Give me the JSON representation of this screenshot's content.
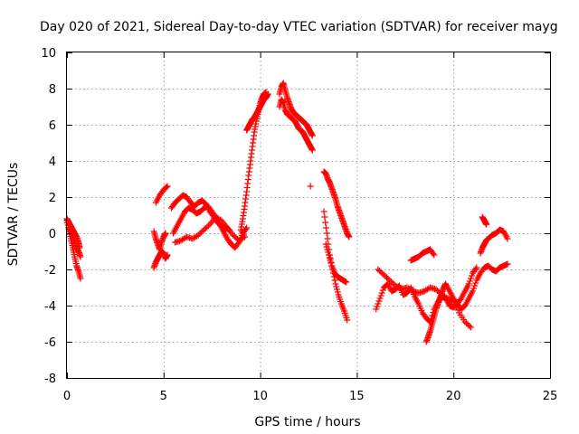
{
  "chart_data": {
    "type": "scatter",
    "title": "Day 020 of 2021, Sidereal Day-to-day VTEC variation (SDTVAR) for receiver mayg",
    "xlabel": "GPS time / hours",
    "ylabel": "SDTVAR / TECUs",
    "xlim": [
      0,
      25
    ],
    "ylim": [
      -8,
      10
    ],
    "xticks": [
      0,
      5,
      10,
      15,
      20,
      25
    ],
    "yticks": [
      -8,
      -6,
      -4,
      -2,
      0,
      2,
      4,
      6,
      8,
      10
    ],
    "xtick_labels": [
      "0",
      "5",
      "10",
      "15",
      "20",
      "25"
    ],
    "ytick_labels": [
      "-8",
      "-6",
      "-4",
      "-2",
      "0",
      "2",
      "4",
      "6",
      "8",
      "10"
    ],
    "grid": true,
    "marker": "+",
    "color": "#ff0000",
    "series": [
      {
        "name": "SDTVAR",
        "x": [
          0.0,
          0.1,
          0.2,
          0.3,
          0.4,
          0.5,
          0.6,
          0.65,
          0.0,
          0.1,
          0.2,
          0.3,
          0.4,
          0.5,
          0.6,
          0.7,
          0.1,
          0.2,
          0.3,
          0.4,
          0.5,
          0.6,
          0.7,
          4.5,
          4.6,
          4.7,
          4.8,
          4.9,
          5.0,
          5.1,
          4.5,
          4.6,
          4.7,
          4.8,
          4.9,
          5.0,
          5.1,
          5.2,
          4.6,
          4.8,
          5.0,
          5.2,
          5.4,
          5.6,
          5.8,
          6.0,
          6.2,
          6.4,
          6.6,
          6.8,
          7.0,
          7.2,
          7.4,
          7.6,
          7.8,
          8.0,
          8.2,
          8.4,
          5.5,
          5.7,
          5.9,
          6.1,
          6.3,
          6.5,
          6.7,
          6.9,
          7.1,
          7.3,
          7.5,
          7.7,
          7.9,
          8.1,
          8.3,
          8.5,
          8.7,
          8.9,
          9.1,
          9.3,
          5.6,
          5.9,
          6.2,
          6.5,
          6.8,
          7.1,
          7.4,
          7.7,
          8.0,
          8.3,
          8.6,
          8.9,
          9.2,
          9.0,
          9.1,
          9.2,
          9.3,
          9.4,
          9.5,
          9.6,
          9.7,
          9.8,
          9.9,
          10.0,
          10.1,
          10.2,
          10.3,
          9.3,
          9.4,
          9.5,
          9.6,
          9.7,
          9.8,
          9.9,
          10.0,
          10.1,
          10.2,
          10.3,
          10.4,
          11.0,
          11.1,
          11.2,
          11.3,
          11.4,
          11.5,
          11.6,
          11.7,
          11.8,
          11.9,
          12.0,
          12.1,
          12.2,
          12.3,
          12.4,
          12.5,
          12.6,
          12.7,
          11.0,
          11.1,
          11.2,
          11.3,
          11.4,
          11.5,
          11.6,
          11.7,
          11.8,
          11.9,
          12.0,
          12.1,
          12.2,
          12.3,
          12.4,
          12.5,
          12.6,
          12.7,
          12.6,
          13.3,
          13.4,
          13.5,
          13.6,
          13.7,
          13.8,
          13.9,
          14.0,
          14.1,
          14.2,
          14.3,
          14.4,
          14.5,
          14.6,
          13.3,
          13.45,
          13.6,
          13.75,
          13.9,
          14.05,
          14.2,
          14.35,
          14.5,
          13.4,
          13.55,
          13.7,
          13.85,
          14.0,
          14.15,
          14.3,
          14.45,
          16.0,
          16.2,
          16.4,
          16.6,
          16.8,
          17.0,
          17.2,
          17.4,
          17.6,
          17.8,
          18.0,
          18.2,
          18.4,
          18.6,
          18.8,
          19.0,
          19.2,
          19.4,
          19.6,
          19.8,
          20.0,
          20.2,
          20.4,
          20.6,
          20.8,
          21.0,
          21.2,
          16.1,
          16.4,
          16.7,
          17.0,
          17.3,
          17.6,
          17.9,
          18.2,
          18.5,
          18.8,
          19.1,
          19.4,
          19.7,
          20.0,
          20.3,
          20.6,
          20.9,
          17.8,
          18.0,
          18.2,
          18.4,
          18.6,
          18.8,
          19.0,
          18.6,
          18.7,
          18.8,
          18.9,
          19.0,
          19.1,
          19.2,
          19.3,
          19.4,
          19.5,
          19.6,
          19.8,
          20.0,
          20.2,
          20.4,
          20.6,
          20.8,
          21.0,
          21.2,
          21.4,
          21.6,
          21.8,
          22.0,
          22.2,
          22.4,
          22.6,
          22.8,
          21.4,
          21.5,
          21.6,
          21.7,
          21.8,
          22.0,
          22.2,
          22.4,
          22.6,
          22.8,
          21.5,
          21.6,
          21.7
        ],
        "y": [
          0.8,
          0.6,
          0.4,
          0.2,
          0.0,
          -0.2,
          -0.5,
          -0.8,
          0.7,
          0.2,
          -0.3,
          -0.8,
          -1.3,
          -1.8,
          -2.1,
          -2.5,
          0.3,
          0.1,
          -0.2,
          -0.5,
          -0.8,
          -1.0,
          -1.3,
          0.1,
          -0.3,
          -0.6,
          -0.9,
          -0.5,
          -0.2,
          0.0,
          -1.9,
          -1.6,
          -1.4,
          -1.2,
          -1.0,
          -1.1,
          -1.4,
          -1.2,
          1.7,
          2.1,
          2.4,
          2.6,
          1.4,
          1.7,
          1.9,
          2.1,
          2.0,
          1.7,
          1.5,
          1.7,
          1.8,
          1.6,
          1.2,
          0.9,
          0.6,
          0.4,
          0.3,
          0.2,
          0.0,
          0.4,
          0.8,
          1.2,
          1.4,
          1.3,
          1.1,
          1.2,
          1.4,
          1.5,
          1.2,
          0.9,
          0.5,
          0.1,
          -0.3,
          -0.6,
          -0.8,
          -0.5,
          0.0,
          0.3,
          -0.5,
          -0.4,
          -0.2,
          -0.3,
          -0.1,
          0.2,
          0.5,
          0.9,
          0.7,
          0.3,
          -0.1,
          -0.4,
          -0.2,
          0.2,
          0.8,
          1.5,
          2.3,
          3.2,
          4.0,
          4.8,
          5.6,
          6.2,
          6.7,
          7.2,
          7.5,
          7.7,
          7.8,
          5.7,
          5.9,
          6.1,
          6.3,
          6.4,
          6.6,
          6.8,
          7.0,
          7.2,
          7.4,
          7.5,
          7.7,
          7.7,
          8.1,
          8.3,
          7.9,
          7.5,
          7.2,
          6.9,
          6.7,
          6.6,
          6.5,
          6.4,
          6.3,
          6.2,
          6.1,
          6.0,
          5.8,
          5.6,
          5.4,
          7.0,
          7.4,
          7.2,
          6.8,
          6.6,
          6.5,
          6.4,
          6.3,
          6.2,
          6.0,
          5.8,
          5.7,
          5.6,
          5.4,
          5.2,
          5.0,
          4.8,
          4.6,
          2.6,
          3.4,
          3.3,
          3.0,
          2.8,
          2.5,
          2.2,
          1.9,
          1.5,
          1.2,
          0.9,
          0.6,
          0.3,
          0.0,
          -0.2,
          1.2,
          0.0,
          -1.2,
          -2.0,
          -2.8,
          -3.4,
          -3.9,
          -4.3,
          -4.8,
          -0.6,
          -1.2,
          -1.8,
          -2.2,
          -2.4,
          -2.5,
          -2.6,
          -2.7,
          -4.2,
          -3.6,
          -3.0,
          -2.8,
          -3.2,
          -3.1,
          -2.9,
          -3.4,
          -3.3,
          -3.0,
          -3.5,
          -3.9,
          -4.4,
          -4.7,
          -4.9,
          -4.2,
          -3.8,
          -3.5,
          -3.6,
          -4.0,
          -4.1,
          -3.9,
          -3.6,
          -3.2,
          -2.8,
          -2.2,
          -1.9,
          -2.0,
          -2.3,
          -2.6,
          -2.9,
          -3.1,
          -3.0,
          -3.2,
          -3.3,
          -3.2,
          -3.0,
          -3.1,
          -3.4,
          -3.6,
          -3.8,
          -4.4,
          -4.9,
          -5.2,
          -1.5,
          -1.4,
          -1.3,
          -1.1,
          -1.0,
          -0.9,
          -1.2,
          -6.0,
          -5.7,
          -5.4,
          -5.0,
          -4.6,
          -4.2,
          -3.9,
          -3.6,
          -3.3,
          -3.0,
          -2.8,
          -3.2,
          -3.6,
          -3.9,
          -4.2,
          -4.0,
          -3.6,
          -3.2,
          -2.6,
          -2.2,
          -1.9,
          -1.8,
          -2.0,
          -2.1,
          -1.9,
          -1.8,
          -1.7,
          -1.1,
          -0.8,
          -0.6,
          -0.4,
          -0.3,
          -0.1,
          0.0,
          0.2,
          0.1,
          -0.3,
          0.9,
          0.7,
          0.5
        ]
      }
    ]
  }
}
